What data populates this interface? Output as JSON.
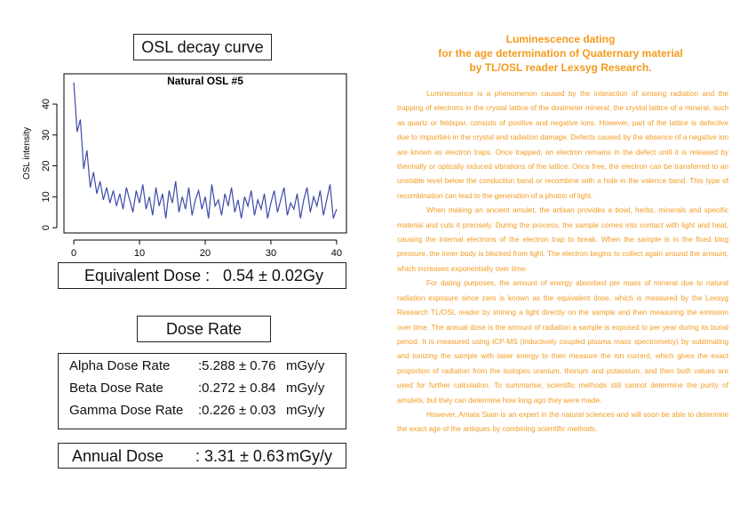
{
  "chart_data": {
    "type": "line",
    "heading": "OSL decay curve",
    "title": "Natural OSL #5",
    "ylabel": "OSL intensity",
    "xlim": [
      -1.5,
      41.5
    ],
    "ylim": [
      -1.7,
      49.8
    ],
    "xticks": [
      0,
      10,
      20,
      30,
      40
    ],
    "yticks": [
      0,
      10,
      20,
      30,
      40
    ],
    "series": [
      {
        "color": "#3b4aa8",
        "x": [
          0,
          0.5,
          1,
          1.5,
          2,
          2.5,
          3,
          3.5,
          4,
          4.5,
          5,
          5.5,
          6,
          6.5,
          7,
          7.5,
          8,
          8.5,
          9,
          9.5,
          10,
          10.5,
          11,
          11.5,
          12,
          12.5,
          13,
          13.5,
          14,
          14.5,
          15,
          15.5,
          16,
          16.5,
          17,
          17.5,
          18,
          18.5,
          19,
          19.5,
          20,
          20.5,
          21,
          21.5,
          22,
          22.5,
          23,
          23.5,
          24,
          24.5,
          25,
          25.5,
          26,
          26.5,
          27,
          27.5,
          28,
          28.5,
          29,
          29.5,
          30,
          30.5,
          31,
          31.5,
          32,
          32.5,
          33,
          33.5,
          34,
          34.5,
          35,
          35.5,
          36,
          36.5,
          37,
          37.5,
          38,
          38.5,
          39,
          39.5,
          40
        ],
        "values": [
          47,
          31,
          35,
          19,
          25,
          13,
          18,
          11,
          15,
          9,
          13,
          8,
          12,
          7,
          11,
          6,
          13,
          9,
          5,
          12,
          8,
          14,
          6,
          10,
          4,
          13,
          7,
          11,
          3,
          12,
          8,
          15,
          5,
          10,
          6,
          13,
          4,
          9,
          12,
          6,
          10,
          3,
          14,
          7,
          9,
          4,
          11,
          7,
          13,
          5,
          9,
          3,
          10,
          7,
          12,
          4,
          9,
          6,
          11,
          3,
          8,
          12,
          5,
          9,
          13,
          4,
          8,
          6,
          11,
          3,
          9,
          13,
          5,
          10,
          7,
          12,
          4,
          9,
          14,
          3,
          6
        ]
      }
    ]
  },
  "equivalent_dose": {
    "label": "Equivalent Dose :",
    "value": "0.54 ± 0.02",
    "unit": "Gy"
  },
  "dose_rate": {
    "heading": "Dose Rate",
    "rows": [
      {
        "label": "Alpha Dose Rate",
        "value": ":5.288 ± 0.76",
        "unit": "mGy/y"
      },
      {
        "label": "Beta Dose Rate",
        "value": ":0.272 ± 0.84",
        "unit": "mGy/y"
      },
      {
        "label": "Gamma Dose Rate",
        "value": ":0.226 ± 0.03",
        "unit": "mGy/y"
      }
    ]
  },
  "annual_dose": {
    "label": "Annual Dose",
    "value": ": 3.31 ± 0.63",
    "unit": "mGy/y"
  },
  "article": {
    "title": [
      "Luminescence dating",
      "for the age determination of Quaternary material",
      "by TL/OSL reader Lexsyg Research."
    ],
    "paragraphs": [
      "Luminescence is a phenomenon caused by the interaction of ionising radiation and the trapping of electrons in the crystal lattice of the dosimeter mineral. the crystal lattice of a mineral, such as quartz or feldspar, consists of positive and negative ions. However, part of the lattice is defective due to impurities in the crystal and radiation damage. Defects caused by the absence of a negative ion are known as electron traps. Once trapped, an electron remains in the defect until it is released by thermally or optically induced vibrations of the lattice. Once free, the electron can be transferred to an unstable level below the conduction band or recombine with a hole in the valence band. This type of recombination can lead to the generation of a photon of light.",
      "When making an ancient amulet, the artisan provides a bowl, herbs, minerals and specific material and cuts it precisely. During the process, the sample comes into contact with light and heat, causing the internal electrons of the electron trap to break. When the sample is in the fixed blog pressure, the inner body is blocked from light. The electron begins to collect again around the amount, which increases exponentially over time.",
      "For dating purposes, the amount of energy absorbed per mass of mineral due to natural radiation exposure since zero is known as the equivalent dose, which is measured by the Lexsyg Research TL/OSL reader by shining a light directly on the sample and then measuring the emission over time. The annual dose is the amount of radiation a sample is exposed to per year during its burial period. It is measured using ICP-MS (inductively coupled plasma mass spectrometry) by sublimating and ionizing the sample with laser energy to then measure the ion current, which gives the exact proportion of radiation from the isotopes uranium, thorium and potassium, and then both values are used for further calculation. To summarise, scientific methods still cannot determine the purity of amulets, but they can determine how long ago they were made.",
      "However, Amata Siam is an expert in the natural sciences and will soon be able to determine the exact age of the antiques by combining scientific methods."
    ]
  }
}
